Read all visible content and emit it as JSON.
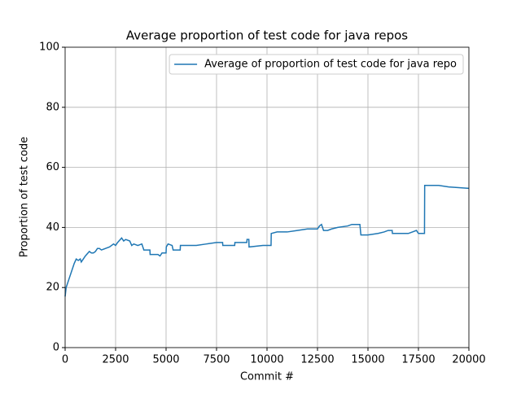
{
  "chart_data": {
    "type": "line",
    "title": "Average proportion of test code for java repos",
    "xlabel": "Commit #",
    "ylabel": "Proportion of test code",
    "x": [
      0,
      50,
      150,
      300,
      450,
      550,
      650,
      750,
      800,
      900,
      1000,
      1200,
      1300,
      1400,
      1500,
      1600,
      1700,
      1800,
      2000,
      2200,
      2400,
      2500,
      2600,
      2800,
      2900,
      3000,
      3200,
      3300,
      3400,
      3600,
      3800,
      3900,
      4200,
      4210,
      4600,
      4700,
      4800,
      5000,
      5010,
      5100,
      5300,
      5350,
      5700,
      5710,
      6500,
      7000,
      7500,
      7800,
      7810,
      8400,
      8410,
      9000,
      9010,
      9100,
      9110,
      9800,
      10200,
      10210,
      10500,
      11000,
      11500,
      12000,
      12500,
      12600,
      12700,
      12800,
      13000,
      13200,
      13500,
      14000,
      14200,
      14600,
      14650,
      15000,
      15500,
      15800,
      16000,
      16200,
      16210,
      17000,
      17400,
      17500,
      17800,
      17810,
      18500,
      19000,
      20000
    ],
    "series": [
      {
        "name": "Average of proportion of test code for java repo",
        "color": "#1f77b4",
        "values": [
          17,
          20,
          22,
          25,
          28,
          29.5,
          29,
          29.5,
          28.5,
          29.5,
          30.5,
          32,
          31.5,
          31.5,
          32,
          33,
          33,
          32.5,
          33,
          33.5,
          34.5,
          34,
          35,
          36.5,
          35.5,
          36,
          35.5,
          34,
          34.5,
          34,
          34.5,
          32.5,
          32.5,
          31,
          31,
          30.5,
          31.5,
          31.5,
          33.5,
          34.5,
          34,
          32.5,
          32.5,
          34,
          34,
          34.5,
          35,
          35,
          34,
          34,
          35,
          35,
          36,
          36,
          33.5,
          34,
          34,
          38,
          38.5,
          38.5,
          39,
          39.5,
          39.5,
          40.5,
          41,
          39,
          39,
          39.5,
          40,
          40.5,
          41,
          41,
          37.5,
          37.5,
          38,
          38.5,
          39,
          39,
          38,
          38,
          39,
          38,
          38,
          54,
          54,
          53.5,
          53
        ]
      }
    ],
    "xlim": [
      0,
      20000
    ],
    "ylim": [
      0,
      100
    ],
    "xticks": [
      0,
      2500,
      5000,
      7500,
      10000,
      12500,
      15000,
      17500,
      20000
    ],
    "yticks": [
      0,
      20,
      40,
      60,
      80,
      100
    ],
    "grid": true,
    "legend": "upper right"
  }
}
